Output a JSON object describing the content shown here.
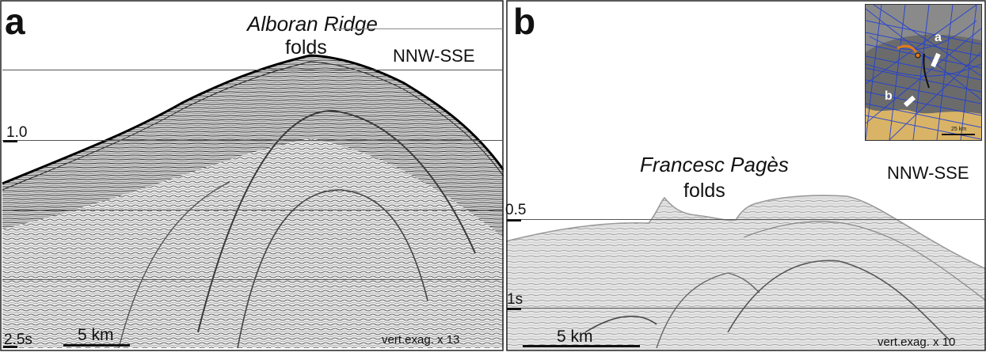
{
  "panel_a": {
    "letter": "a",
    "title_line1": "Alboran Ridge",
    "title_line2": "folds",
    "orientation": "NNW-SSE",
    "time_ticks": [
      "1.0",
      "2.5s"
    ],
    "scale_label": "5 km",
    "vert_exag": "vert.exag. x 13"
  },
  "panel_b": {
    "letter": "b",
    "title_line1": "Francesc Pagès",
    "title_line2": "folds",
    "orientation": "NNW-SSE",
    "time_ticks": [
      "0.5",
      "1s"
    ],
    "scale_label": "5 km",
    "vert_exag": "vert.exag. x 10"
  },
  "inset_map": {
    "labels": [
      "a",
      "b"
    ],
    "scale_label": "25 km",
    "colors": {
      "tracklines": "#1f3fd6",
      "land": "#d9b466",
      "seafloor": "#6b6b6b",
      "marker": "#e07a1f"
    }
  }
}
